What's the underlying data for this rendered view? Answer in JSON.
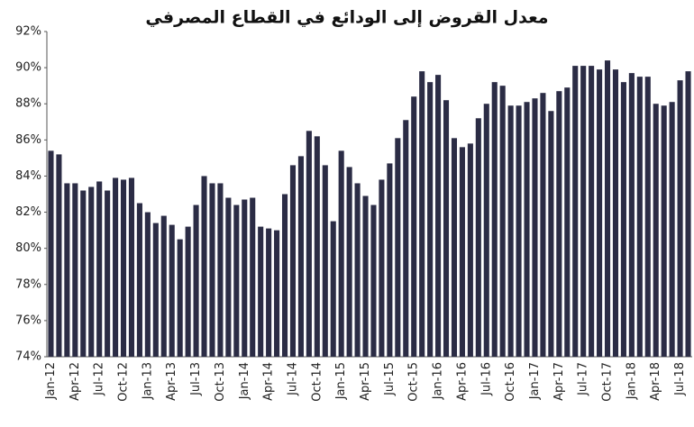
{
  "chart_data": {
    "type": "bar",
    "title": "معدل القروض إلى الودائع في القطاع المصرفي",
    "categories": [
      "Jan-12",
      null,
      null,
      "Apr-12",
      null,
      null,
      "Jul-12",
      null,
      null,
      "Oct-12",
      null,
      null,
      "Jan-13",
      null,
      null,
      "Apr-13",
      null,
      null,
      "Jul-13",
      null,
      null,
      "Oct-13",
      null,
      null,
      "Jan-14",
      null,
      null,
      "Apr-14",
      null,
      null,
      "Jul-14",
      null,
      null,
      "Oct-14",
      null,
      null,
      "Jan-15",
      null,
      null,
      "Apr-15",
      null,
      null,
      "Jul-15",
      null,
      null,
      "Oct-15",
      null,
      null,
      "Jan-16",
      null,
      null,
      "Apr-16",
      null,
      null,
      "Jul-16",
      null,
      null,
      "Oct-16",
      null,
      null,
      "Jan-17",
      null,
      null,
      "Apr-17",
      null,
      null,
      "Jul-17",
      null,
      null,
      "Oct-17",
      null,
      null,
      "Jan-18",
      null,
      null,
      "Apr-18",
      null,
      null,
      "Jul-18",
      null
    ],
    "values": [
      85.4,
      85.2,
      83.6,
      83.6,
      83.2,
      83.4,
      83.7,
      83.2,
      83.9,
      83.8,
      83.9,
      82.5,
      82.0,
      81.4,
      81.8,
      81.3,
      80.5,
      81.2,
      82.4,
      84.0,
      83.6,
      83.6,
      82.8,
      82.4,
      82.7,
      82.8,
      81.2,
      81.1,
      81.0,
      83.0,
      84.6,
      85.1,
      86.5,
      86.2,
      84.6,
      81.5,
      85.4,
      84.5,
      83.6,
      82.9,
      82.4,
      83.8,
      84.7,
      86.1,
      87.1,
      88.4,
      89.8,
      89.2,
      89.6,
      88.2,
      86.1,
      85.6,
      85.8,
      87.2,
      88.0,
      89.2,
      89.0,
      87.9,
      87.9,
      88.1,
      88.3,
      88.6,
      87.6,
      88.7,
      88.9,
      90.1,
      90.1,
      90.1,
      89.9,
      90.4,
      89.9,
      89.2,
      89.7,
      89.5,
      89.5,
      88.0,
      87.9,
      88.1,
      89.3,
      89.8
    ],
    "color": "#2b2c45",
    "ylim": [
      74,
      92
    ],
    "yticks": [
      {
        "value": 74,
        "label": "74%"
      },
      {
        "value": 76,
        "label": "76%"
      },
      {
        "value": 78,
        "label": "78%"
      },
      {
        "value": 80,
        "label": "80%"
      },
      {
        "value": 82,
        "label": "82%"
      },
      {
        "value": 84,
        "label": "84%"
      },
      {
        "value": 86,
        "label": "86%"
      },
      {
        "value": 88,
        "label": "88%"
      },
      {
        "value": 90,
        "label": "90%"
      },
      {
        "value": 92,
        "label": "92%"
      }
    ],
    "grid": false
  }
}
